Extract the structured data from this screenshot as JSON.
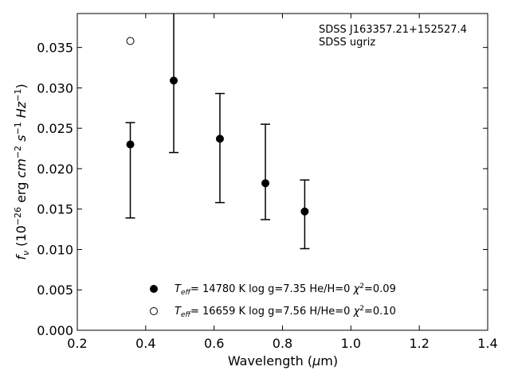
{
  "chart_data": {
    "type": "scatter",
    "annotation": [
      "SDSS J163357.21+152527.4",
      "SDSS ugriz"
    ],
    "xlabel": "Wavelength (μm)",
    "ylabel": "fν (10⁻²⁶ erg cm⁻² s⁻¹ Hz⁻¹)",
    "xlim": [
      0.2,
      1.4
    ],
    "ylim": [
      0.0,
      0.0392
    ],
    "xticks": [
      "0.2",
      "0.4",
      "0.6",
      "0.8",
      "1.0",
      "1.2",
      "1.4"
    ],
    "yticks": [
      "0.000",
      "0.005",
      "0.010",
      "0.015",
      "0.020",
      "0.025",
      "0.030",
      "0.035"
    ],
    "grid": false,
    "legend_position": "lower-center",
    "series": [
      {
        "name": "Teff= 14780 K  log g=7.35  He/H=0  χ²=0.09",
        "marker": "filled-circle",
        "color": "#000000",
        "points": [
          {
            "x": 0.355,
            "y": 0.023,
            "ylow": 0.0139,
            "yhigh": 0.0257
          },
          {
            "x": 0.482,
            "y": 0.0309,
            "ylow": 0.022,
            "yhigh": 0.04
          },
          {
            "x": 0.617,
            "y": 0.0237,
            "ylow": 0.0158,
            "yhigh": 0.0293
          },
          {
            "x": 0.75,
            "y": 0.0182,
            "ylow": 0.0137,
            "yhigh": 0.0255
          },
          {
            "x": 0.865,
            "y": 0.0147,
            "ylow": 0.0101,
            "yhigh": 0.0186
          }
        ]
      },
      {
        "name": "Teff= 16659 K  log g=7.56  H/He=0  χ²=0.10",
        "marker": "open-circle",
        "color": "#000000",
        "points": [
          {
            "x": 0.355,
            "y": 0.0358
          }
        ]
      }
    ]
  }
}
